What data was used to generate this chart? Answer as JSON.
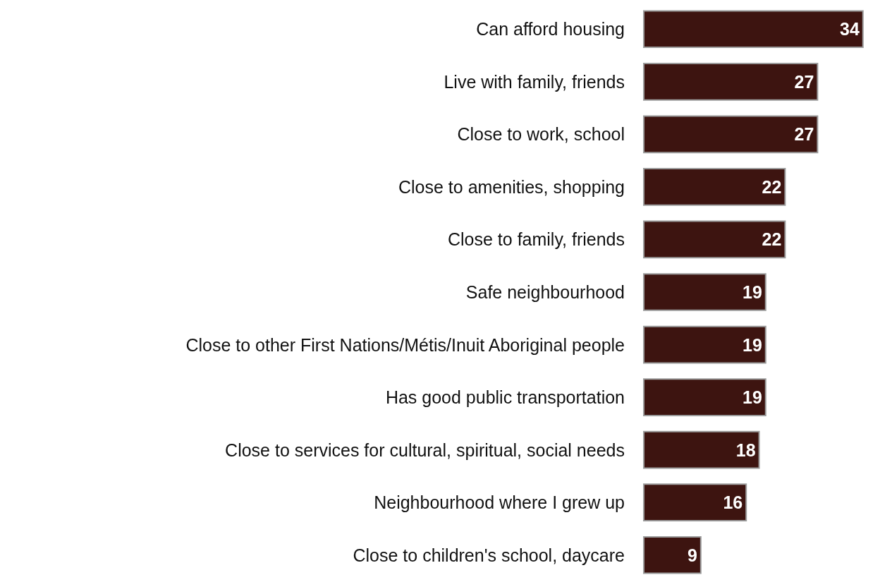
{
  "chart_data": {
    "type": "bar",
    "orientation": "horizontal",
    "categories": [
      "Can afford housing",
      "Live with family, friends",
      "Close to work, school",
      "Close to amenities, shopping",
      "Close to family, friends",
      "Safe neighbourhood",
      "Close to other First Nations/Métis/Inuit Aboriginal people",
      "Has good public transportation",
      "Close to services for cultural, spiritual, social needs",
      "Neighbourhood where I grew up",
      "Close to children's school, daycare"
    ],
    "values": [
      34,
      27,
      27,
      22,
      22,
      19,
      19,
      19,
      18,
      16,
      9
    ],
    "color": "#3d1410",
    "data_labels": true,
    "tick_labels": "y"
  }
}
